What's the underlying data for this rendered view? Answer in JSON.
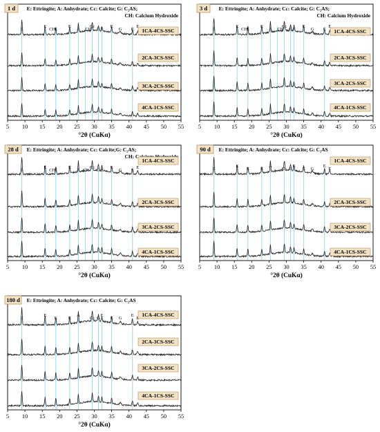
{
  "figure": {
    "x_tick_labels": [
      "5",
      "10",
      "15",
      "20",
      "25",
      "30",
      "35",
      "40",
      "45",
      "50",
      "55"
    ],
    "axis_title": "°2θ (CuKα)",
    "colors": {
      "trace": "#222222",
      "reference_line": "#9fd8ee",
      "tag_fill": "#f5e3c6",
      "tag_stroke": "#b08a5a"
    }
  },
  "chart_data": [
    {
      "type": "line",
      "title": "1 d",
      "legend_text": [
        "E: Ettringite; A: Anhydrate; Cc: Calcite; G: C₂AS;",
        "CH: Calcium Hydroxide"
      ],
      "series": [
        {
          "name": "1CA-4CS-SSC"
        },
        {
          "name": "2CA-3CS-SSC"
        },
        {
          "name": "3CA-2CS-SSC"
        },
        {
          "name": "4CA-1CS-SSC"
        }
      ],
      "reference_lines_2theta": [
        9.1,
        15.8,
        18.9,
        22.9,
        25.4,
        27.4,
        29.4,
        31.2,
        32.2,
        35.0,
        41.0
      ],
      "peak_labels": [
        {
          "text": "E",
          "x": 9.1
        },
        {
          "text": "E",
          "x": 15.8
        },
        {
          "text": "CH",
          "x": 17.9
        },
        {
          "text": "E",
          "x": 18.9
        },
        {
          "text": "E",
          "x": 22.9
        },
        {
          "text": "A",
          "x": 25.4
        },
        {
          "text": "CH",
          "x": 28.3
        },
        {
          "text": "Cc",
          "x": 29.4
        },
        {
          "text": "G",
          "x": 31.2
        },
        {
          "text": "E",
          "x": 32.2
        },
        {
          "text": "E",
          "x": 35.0
        },
        {
          "text": "G",
          "x": 37.5
        },
        {
          "text": "E",
          "x": 41.0
        },
        {
          "text": "E",
          "x": 42.5
        }
      ],
      "xlim": [
        5,
        55
      ],
      "grid": false
    },
    {
      "type": "line",
      "title": "3 d",
      "legend_text": [
        "E: Ettringite; A: Anhydrate; Cc: Calcite; G: C₂AS;",
        "CH: Calcium Hydroxide"
      ],
      "series": [
        {
          "name": "1CA-4CS-SSC"
        },
        {
          "name": "2CA-3CS-SSC"
        },
        {
          "name": "3CA-2CS-SSC"
        },
        {
          "name": "4CA-1CS-SSC"
        }
      ],
      "reference_lines_2theta": [
        9.1,
        15.8,
        18.9,
        22.9,
        25.4,
        27.4,
        29.4,
        31.2,
        32.2,
        35.0,
        41.0
      ],
      "peak_labels": [
        {
          "text": "E",
          "x": 9.1
        },
        {
          "text": "E",
          "x": 15.8
        },
        {
          "text": "CH",
          "x": 17.9
        },
        {
          "text": "E",
          "x": 18.9
        },
        {
          "text": "E",
          "x": 22.9
        },
        {
          "text": "A",
          "x": 25.4
        },
        {
          "text": "CH",
          "x": 28.3
        },
        {
          "text": "Cc",
          "x": 29.4
        },
        {
          "text": "G",
          "x": 31.2
        },
        {
          "text": "E",
          "x": 32.2
        },
        {
          "text": "E",
          "x": 35.0
        },
        {
          "text": "G",
          "x": 37.5
        },
        {
          "text": "E",
          "x": 41.0
        },
        {
          "text": "E",
          "x": 42.5
        }
      ],
      "xlim": [
        5,
        55
      ],
      "grid": false
    },
    {
      "type": "line",
      "title": "28 d",
      "legend_text": [
        "E: Ettringite; A: Anhydrate; Cc: Calcite;G: C₂AS;",
        "CH: Calcium Hydroxide"
      ],
      "series": [
        {
          "name": "1CA-4CS-SSC"
        },
        {
          "name": "2CA-3CS-SSC"
        },
        {
          "name": "3CA-2CS-SSC"
        },
        {
          "name": "4CA-1CS-SSC"
        }
      ],
      "reference_lines_2theta": [
        9.1,
        15.8,
        18.9,
        22.9,
        25.4,
        27.4,
        29.4,
        31.2,
        32.2,
        35.0,
        41.0
      ],
      "peak_labels": [
        {
          "text": "E",
          "x": 9.1
        },
        {
          "text": "E",
          "x": 15.8
        },
        {
          "text": "CH",
          "x": 17.9
        },
        {
          "text": "E",
          "x": 18.9
        },
        {
          "text": "E",
          "x": 22.9
        },
        {
          "text": "A",
          "x": 25.4
        },
        {
          "text": "CH",
          "x": 27.6
        },
        {
          "text": "Cc",
          "x": 29.4
        },
        {
          "text": "G",
          "x": 31.2
        },
        {
          "text": "E",
          "x": 32.2
        },
        {
          "text": "E",
          "x": 35.0
        },
        {
          "text": "G",
          "x": 37.5
        },
        {
          "text": "E",
          "x": 41.0
        },
        {
          "text": "E",
          "x": 42.5
        }
      ],
      "xlim": [
        5,
        55
      ],
      "grid": false
    },
    {
      "type": "line",
      "title": "90 d",
      "legend_text": [
        "E: Ettringite; A: Anhydrate; Cc: Calcite; G: C₂AS",
        ""
      ],
      "series": [
        {
          "name": "1CA-4CS-SSC"
        },
        {
          "name": "2CA-3CS-SSC"
        },
        {
          "name": "3CA-2CS-SSC"
        },
        {
          "name": "4CA-1CS-SSC"
        }
      ],
      "reference_lines_2theta": [
        9.1,
        15.8,
        18.9,
        22.9,
        25.4,
        29.4,
        31.2,
        32.2,
        35.0,
        41.0
      ],
      "peak_labels": [
        {
          "text": "E",
          "x": 9.1
        },
        {
          "text": "E",
          "x": 15.8
        },
        {
          "text": "E",
          "x": 18.9
        },
        {
          "text": "E",
          "x": 22.9
        },
        {
          "text": "A",
          "x": 25.4
        },
        {
          "text": "Cc",
          "x": 29.4
        },
        {
          "text": "G",
          "x": 31.2
        },
        {
          "text": "E",
          "x": 32.2
        },
        {
          "text": "E",
          "x": 35.0
        },
        {
          "text": "G",
          "x": 37.5
        },
        {
          "text": "E",
          "x": 41.0
        },
        {
          "text": "E",
          "x": 42.5
        }
      ],
      "xlim": [
        5,
        55
      ],
      "grid": false
    },
    {
      "type": "line",
      "title": "180 d",
      "legend_text": [
        "E: Ettringite; A: Anhydrate; Cc: Calcite; G: C₂AS",
        ""
      ],
      "series": [
        {
          "name": "1CA-4CS-SSC"
        },
        {
          "name": "2CA-3CS-SSC"
        },
        {
          "name": "3CA-2CS-SSC"
        },
        {
          "name": "4CA-1CS-SSC"
        }
      ],
      "reference_lines_2theta": [
        9.1,
        15.8,
        18.9,
        22.9,
        25.4,
        29.4,
        31.2,
        32.2,
        35.0,
        41.0
      ],
      "peak_labels": [
        {
          "text": "E",
          "x": 9.1
        },
        {
          "text": "E",
          "x": 15.8
        },
        {
          "text": "E",
          "x": 18.9
        },
        {
          "text": "E",
          "x": 22.9
        },
        {
          "text": "A",
          "x": 25.4
        },
        {
          "text": "Cc",
          "x": 29.4
        },
        {
          "text": "G",
          "x": 31.2
        },
        {
          "text": "E",
          "x": 32.2
        },
        {
          "text": "E",
          "x": 35.0
        },
        {
          "text": "G",
          "x": 37.5
        },
        {
          "text": "E",
          "x": 41.0
        },
        {
          "text": "E",
          "x": 42.5
        }
      ],
      "xlim": [
        5,
        55
      ],
      "grid": false
    }
  ]
}
